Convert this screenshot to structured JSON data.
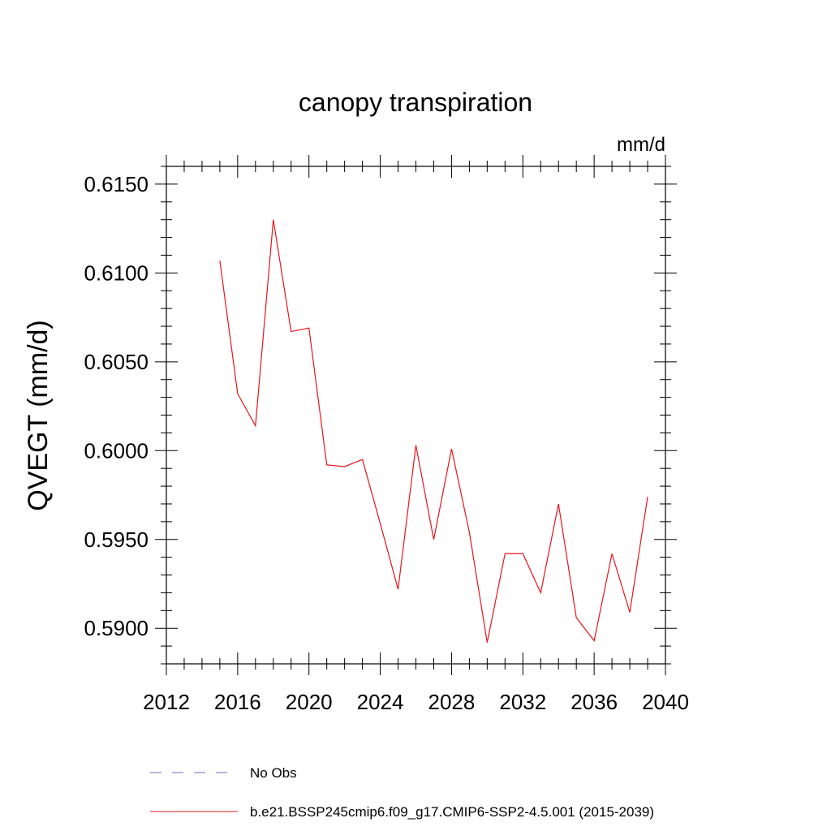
{
  "chart_data": {
    "type": "line",
    "title": "canopy transpiration",
    "units_label": "mm/d",
    "ylabel": "QVEGT  (mm/d)",
    "xlabel": "",
    "xlim": [
      2012,
      2040
    ],
    "ylim": [
      0.588,
      0.616
    ],
    "xticks": [
      2012,
      2016,
      2020,
      2024,
      2028,
      2032,
      2036,
      2040
    ],
    "yticks": [
      0.59,
      0.595,
      0.6,
      0.605,
      0.61,
      0.615
    ],
    "ytick_labels": [
      "0.5900",
      "0.5950",
      "0.6000",
      "0.6050",
      "0.6100",
      "0.6150"
    ],
    "grid": false,
    "legend_position": "bottom",
    "series": [
      {
        "name": "b.e21.BSSP245cmip6.f09_g17.CMIP6-SSP2-4.5.001 (2015-2039)",
        "color": "#e8141c",
        "x": [
          2015,
          2016,
          2017,
          2018,
          2019,
          2020,
          2021,
          2022,
          2023,
          2024,
          2025,
          2026,
          2027,
          2028,
          2029,
          2030,
          2031,
          2032,
          2033,
          2034,
          2035,
          2036,
          2037,
          2038,
          2039
        ],
        "values": [
          0.6107,
          0.6032,
          0.6014,
          0.613,
          0.6067,
          0.6069,
          0.5992,
          0.5991,
          0.5995,
          0.5959,
          0.5922,
          0.6003,
          0.595,
          0.6001,
          0.5954,
          0.5892,
          0.5942,
          0.5942,
          0.592,
          0.597,
          0.5906,
          0.5893,
          0.5942,
          0.5909,
          0.5974
        ]
      }
    ],
    "legend": [
      {
        "label": "No Obs",
        "style": "dashed",
        "color": "#6c6cc0"
      },
      {
        "label": "b.e21.BSSP245cmip6.f09_g17.CMIP6-SSP2-4.5.001 (2015-2039)",
        "style": "solid",
        "color": "#e8141c"
      }
    ]
  }
}
